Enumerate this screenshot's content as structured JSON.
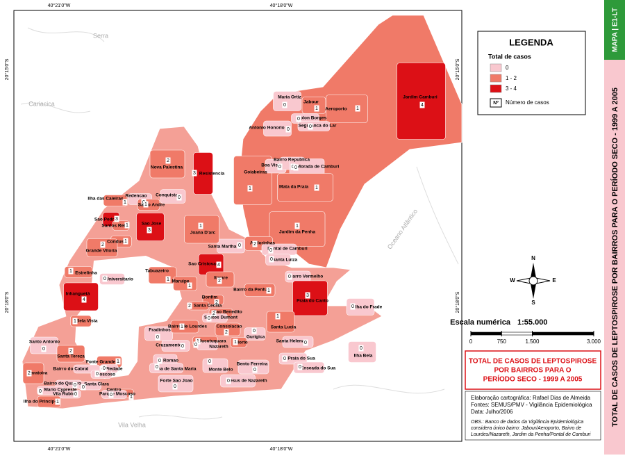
{
  "map": {
    "coordinates": {
      "top": [
        "40°21'0\"W",
        "40°18'0\"W"
      ],
      "bottom": [
        "40°21'0\"W",
        "40°18'0\"W"
      ],
      "left": [
        "20°15'0\"S",
        "20°18'0\"S"
      ],
      "right": [
        "20°15'0\"S",
        "20°18'0\"S"
      ]
    },
    "places": [
      "Serra",
      "Cariacica",
      "Vila Velha",
      "Oceano Atlântico"
    ],
    "neighborhoods": [
      {
        "name": "Maria Ortiz",
        "cases": 0
      },
      {
        "name": "Jabour",
        "cases": 1
      },
      {
        "name": "Aeroporto",
        "cases": 1
      },
      {
        "name": "Jardim Camburi",
        "cases": 4
      },
      {
        "name": "Solon Borges",
        "cases": 0
      },
      {
        "name": "Seguranca do Lar",
        "cases": 0
      },
      {
        "name": "Antonio Honorio",
        "cases": 0
      },
      {
        "name": "Goiabeiras",
        "cases": 1
      },
      {
        "name": "Boa Vista",
        "cases": 0
      },
      {
        "name": "Bairro Republica",
        "cases": 0
      },
      {
        "name": "Morada de Camburi",
        "cases": 0
      },
      {
        "name": "Mata da Praia",
        "cases": 1
      },
      {
        "name": "Jardim da Penha",
        "cases": 1
      },
      {
        "name": "Andorinhas",
        "cases": 2
      },
      {
        "name": "Pontal de Camburi",
        "cases": 0
      },
      {
        "name": "Santa Luiza",
        "cases": 0
      },
      {
        "name": "Santa Martha",
        "cases": 0
      },
      {
        "name": "Joana D'arc",
        "cases": 1
      },
      {
        "name": "Resistencia",
        "cases": 3
      },
      {
        "name": "Nova Palestina",
        "cases": 2
      },
      {
        "name": "Conquista",
        "cases": 0
      },
      {
        "name": "Redencao",
        "cases": 0
      },
      {
        "name": "Santo Andre",
        "cases": 1
      },
      {
        "name": "Ilha das Caieiras",
        "cases": 1
      },
      {
        "name": "Sao Pedro",
        "cases": 3
      },
      {
        "name": "Santos Reis",
        "cases": 1
      },
      {
        "name": "Sao Jose",
        "cases": 3
      },
      {
        "name": "Condusa",
        "cases": 1
      },
      {
        "name": "Grande Vitoria",
        "cases": 2
      },
      {
        "name": "Estrelinha",
        "cases": 1
      },
      {
        "name": "Universitario",
        "cases": 0
      },
      {
        "name": "Inhanguetá",
        "cases": 4
      },
      {
        "name": "Bela Vista",
        "cases": 1
      },
      {
        "name": "Tabuazeiro",
        "cases": 1
      },
      {
        "name": "Sao Cristovao",
        "cases": 4
      },
      {
        "name": "Maruipe",
        "cases": 1
      },
      {
        "name": "Itarare",
        "cases": 2
      },
      {
        "name": "Bairro da Penha",
        "cases": 1
      },
      {
        "name": "Barro Vermelho",
        "cases": 0
      },
      {
        "name": "Praia do Canto",
        "cases": 3
      },
      {
        "name": "Ilha do Frade",
        "cases": 0
      },
      {
        "name": "Bonfim",
        "cases": 2
      },
      {
        "name": "Santa Cecilia",
        "cases": 2
      },
      {
        "name": "Sao Benedito",
        "cases": 2
      },
      {
        "name": "Santos Dumont",
        "cases": 0
      },
      {
        "name": "Fradinhos",
        "cases": 0
      },
      {
        "name": "Bairro de Lourdes",
        "cases": 1
      },
      {
        "name": "Consolacao",
        "cases": 2
      },
      {
        "name": "Gurigica",
        "cases": 0
      },
      {
        "name": "Santa Lucia",
        "cases": 1
      },
      {
        "name": "Cruzamento",
        "cases": 0
      },
      {
        "name": "Jucutuquara",
        "cases": 1
      },
      {
        "name": "Nazareth",
        "cases": 0
      },
      {
        "name": "Horto",
        "cases": 1
      },
      {
        "name": "Santa Helena",
        "cases": 0
      },
      {
        "name": "Santo Antonio",
        "cases": 0
      },
      {
        "name": "Santa Tereza",
        "cases": 2
      },
      {
        "name": "Caratoira",
        "cases": 2
      },
      {
        "name": "Romao",
        "cases": 0
      },
      {
        "name": "Ilha de Santa Maria",
        "cases": 0
      },
      {
        "name": "Monte Belo",
        "cases": 0
      },
      {
        "name": "Bento Ferreira",
        "cases": 0
      },
      {
        "name": "Praia do Sua",
        "cases": 0
      },
      {
        "name": "Enseada do Sua",
        "cases": 0
      },
      {
        "name": "Ilha Bela",
        "cases": 0
      },
      {
        "name": "Fonte Grande",
        "cases": 1
      },
      {
        "name": "Bairro do Cabral",
        "cases": 0
      },
      {
        "name": "Piedade",
        "cases": 0
      },
      {
        "name": "Moscoso",
        "cases": 0
      },
      {
        "name": "Bairro do Quadro",
        "cases": 0
      },
      {
        "name": "Santa Clara",
        "cases": 0
      },
      {
        "name": "Mario Cypreste",
        "cases": 0
      },
      {
        "name": "Vila Rubim",
        "cases": 0
      },
      {
        "name": "Centro",
        "cases": 1
      },
      {
        "name": "Parque Moscoso",
        "cases": 0
      },
      {
        "name": "Forte Sao Joao",
        "cases": 0
      },
      {
        "name": "Jesus de Nazareth",
        "cases": 0
      },
      {
        "name": "Ilha do Principe",
        "cases": 1
      }
    ],
    "legend": {
      "title": "LEGENDA",
      "subtitle": "Total de casos",
      "classes": [
        {
          "label": "0",
          "color": "#f9c8cf"
        },
        {
          "label": "1 - 2",
          "color": "#f07a68"
        },
        {
          "label": "3 - 4",
          "color": "#dc1016"
        }
      ],
      "symbol": "Nº",
      "symbol_label": "Número de casos"
    },
    "compass": [
      "N",
      "S",
      "E",
      "W"
    ],
    "scale": {
      "title": "Escala numérica",
      "ratio": "1:55.000",
      "ticks": [
        0,
        {
          "value": 750,
          "label": "750"
        },
        {
          "value": 1500,
          "label": "1.500"
        },
        {
          "value": 3000,
          "label": "3.000"
        }
      ]
    },
    "title_box": [
      "TOTAL DE CASOS DE LEPTOSPIROSE",
      "POR BAIRROS PARA O",
      "PERÍODO SECO - 1999 A 2005"
    ],
    "credits": [
      "Elaboração cartográfica: Rafael Dias de Almeida",
      "Fontes: SEMUS/PMV - Vigilância Epidemiológica",
      "Data: Julho/2006"
    ],
    "notes": [
      "OBS.: Banco de dados da Vigilância Epidemiológica",
      "considera único bairro: Jabour/Aeroporto, Bairro de",
      "Lourdes/Nazareth, Jardim da Penha/Pontal de Camburi"
    ],
    "side_code": "MAPA | E1-LT",
    "side_title": "TOTAL DE CASOS DE LEPTOSPIROSE POR BAIRROS PARA O PERÍODO SECO - 1999 A 2005"
  }
}
